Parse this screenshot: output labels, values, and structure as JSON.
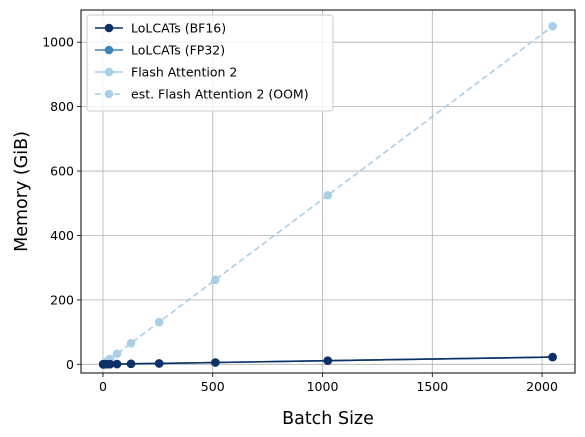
{
  "chart_data": {
    "type": "line",
    "title": "",
    "xlabel": "Batch Size",
    "ylabel": "Memory (GiB)",
    "xlim": [
      -100,
      2150
    ],
    "ylim": [
      -27,
      1100
    ],
    "xticks": [
      0,
      500,
      1000,
      1500,
      2000
    ],
    "yticks": [
      0,
      200,
      400,
      600,
      800,
      1000
    ],
    "grid": true,
    "legend_position": "top-left",
    "series": [
      {
        "name": "LoLCATs (BF16)",
        "color": "#0d3166",
        "style": "solid",
        "marker": "circle",
        "x": [
          1,
          2,
          4,
          8,
          16,
          32,
          64,
          128,
          256,
          512,
          1024,
          2048
        ],
        "y": [
          0.0,
          0.0,
          0.1,
          0.1,
          0.2,
          0.4,
          0.7,
          1.4,
          2.8,
          5.6,
          11.2,
          22.4
        ]
      },
      {
        "name": "LoLCATs (FP32)",
        "color": "#3b84bc",
        "style": "solid",
        "marker": "circle",
        "x": [
          1,
          2,
          4,
          8,
          16,
          32,
          64,
          128,
          256,
          512,
          1024,
          2048
        ],
        "y": [
          0.0,
          0.0,
          0.1,
          0.1,
          0.2,
          0.4,
          0.7,
          1.4,
          2.8,
          5.6,
          11.2,
          22.4
        ]
      },
      {
        "name": "Flash Attention 2",
        "color": "#a9cee6",
        "style": "solid",
        "marker": "circle",
        "x": [
          1,
          2,
          4,
          8,
          16,
          32
        ],
        "y": [
          0.5,
          1.0,
          2.0,
          4.1,
          8.2,
          16.4
        ]
      },
      {
        "name": "est. Flash Attention 2 (OOM)",
        "color": "#a9cee6",
        "style": "dashed",
        "marker": "circle",
        "x": [
          32,
          64,
          128,
          256,
          512,
          1024,
          2048
        ],
        "y": [
          16.4,
          32.8,
          65.6,
          131.2,
          262.4,
          524.8,
          1049.6
        ]
      }
    ]
  }
}
